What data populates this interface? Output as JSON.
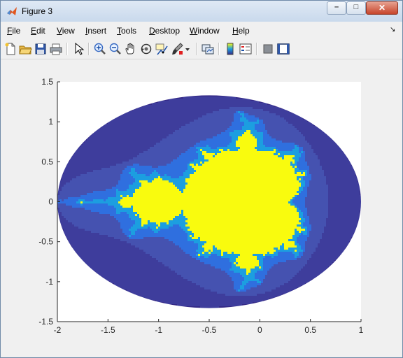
{
  "window": {
    "title": "Figure 3"
  },
  "menu": [
    "File",
    "Edit",
    "View",
    "Insert",
    "Tools",
    "Desktop",
    "Window",
    "Help"
  ],
  "menu_access": [
    "F",
    "E",
    "V",
    "I",
    "T",
    "D",
    "W",
    "H"
  ],
  "toolbar": [
    "new-figure-icon",
    "open-file-icon",
    "save-icon",
    "print-icon",
    "edit-plot-icon",
    "zoom-in-icon",
    "zoom-out-icon",
    "pan-icon",
    "rotate-3d-icon",
    "data-cursor-icon",
    "brush-icon",
    "brush-dropdown-icon",
    "link-plot-icon",
    "colorbar-icon",
    "legend-icon",
    "hide-plot-tools-icon",
    "show-plot-tools-icon"
  ],
  "chart_data": {
    "type": "heatmap",
    "title": "",
    "xlabel": "",
    "ylabel": "",
    "xlim": [
      -2,
      1
    ],
    "ylim": [
      -1.5,
      1.5
    ],
    "x_ticks": [
      -2,
      -1.5,
      -1,
      -0.5,
      0,
      0.5,
      1
    ],
    "x_tick_labels": [
      "-2",
      "-1.5",
      "-1",
      "-0.5",
      "0",
      "0.5",
      "1"
    ],
    "y_ticks": [
      -1.5,
      -1,
      -0.5,
      0,
      0.5,
      1,
      1.5
    ],
    "y_tick_labels": [
      "-1.5",
      "-1",
      "-0.5",
      "0",
      "0.5",
      "1",
      "1.5"
    ],
    "grid": false,
    "region": {
      "shape": "ellipse",
      "center_x": -0.5,
      "center_y": 0,
      "radius_x": 1.5,
      "radius_y": 1.33
    },
    "colormap": "parula",
    "colors": {
      "outside": "#352a87",
      "band1": "#3e3d9c",
      "band2": "#4552b0",
      "band3": "#2f6fdf",
      "band4": "#1c9ee0",
      "set": "#f9fb0e"
    }
  }
}
